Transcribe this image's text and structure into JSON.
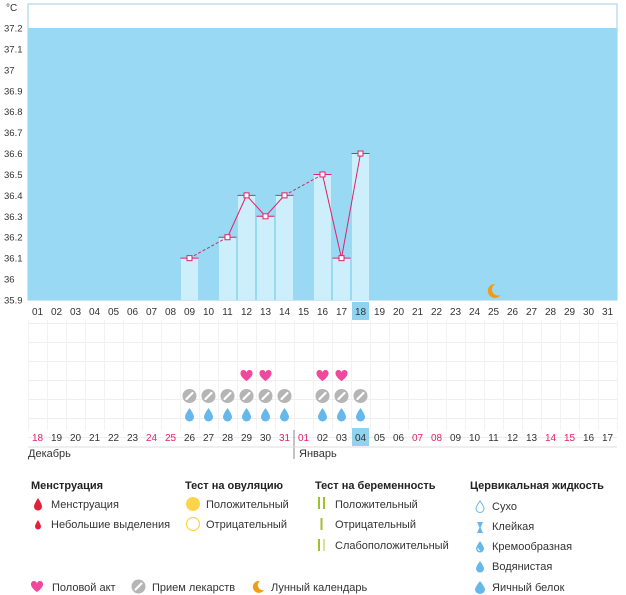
{
  "chart_data": {
    "type": "bar",
    "unit": "°C",
    "ylim": [
      35.9,
      37.2
    ],
    "yticks": [
      "37.2",
      "37.1",
      "37",
      "36.9",
      "36.8",
      "36.7",
      "36.6",
      "36.5",
      "36.4",
      "36.3",
      "36.2",
      "36.1",
      "36",
      "35.9"
    ],
    "cycle_days": [
      "01",
      "02",
      "03",
      "04",
      "05",
      "06",
      "07",
      "08",
      "09",
      "10",
      "11",
      "12",
      "13",
      "14",
      "15",
      "16",
      "17",
      "18",
      "19",
      "20",
      "21",
      "22",
      "23",
      "24",
      "25",
      "26",
      "27",
      "28",
      "29",
      "30",
      "31"
    ],
    "highlight_cycle_day": "18",
    "temperatures": [
      null,
      null,
      null,
      null,
      null,
      null,
      null,
      null,
      36.1,
      null,
      36.2,
      36.4,
      36.3,
      36.4,
      null,
      36.5,
      36.1,
      36.6,
      null,
      null,
      null,
      null,
      null,
      null,
      null,
      null,
      null,
      null,
      null,
      null,
      null
    ],
    "estimated_links": [
      [
        9,
        11
      ],
      [
        14,
        16
      ]
    ],
    "moon_day": "25",
    "calendar_dates": [
      "18",
      "19",
      "20",
      "21",
      "22",
      "23",
      "24",
      "25",
      "26",
      "27",
      "28",
      "29",
      "30",
      "31",
      "01",
      "02",
      "03",
      "04",
      "05",
      "06",
      "07",
      "08",
      "09",
      "10",
      "11",
      "12",
      "13",
      "14",
      "15",
      "16",
      "17"
    ],
    "weekend_dates": [
      true,
      false,
      false,
      false,
      false,
      false,
      true,
      true,
      false,
      false,
      false,
      false,
      false,
      true,
      true,
      false,
      false,
      false,
      false,
      false,
      true,
      true,
      false,
      false,
      false,
      false,
      false,
      true,
      true,
      false,
      false
    ],
    "highlight_calendar_date": "04",
    "months": [
      "Декабрь",
      "Январь"
    ],
    "intercourse_days": [
      "12",
      "13",
      "16",
      "17"
    ],
    "medication_days": [
      "09",
      "10",
      "11",
      "12",
      "13",
      "14",
      "16",
      "17",
      "18"
    ],
    "fluid_watery_days": [
      "09",
      "10",
      "11",
      "12",
      "13",
      "14",
      "16",
      "17",
      "18"
    ]
  },
  "colors": {
    "plot_bg": "#99d9f3",
    "bar": "#cdeefb",
    "line": "#e0216b",
    "highlight": "#8fd3ee",
    "weekend_text": "#e0216b",
    "heart": "#f0489a",
    "pill": "#b5b5b5",
    "drop": "#66b8ea",
    "moon": "#f39c12",
    "ovulation_yellow": "#ffd34a",
    "pregnancy_green": "#9cc22c"
  },
  "legend": {
    "menstruation": {
      "title": "Менструация",
      "items": [
        "Менструация",
        "Небольшие выделения"
      ]
    },
    "ovulation": {
      "title": "Тест на овуляцию",
      "items": [
        "Положительный",
        "Отрицательный"
      ]
    },
    "pregnancy": {
      "title": "Тест на беременность",
      "items": [
        "Положительный",
        "Отрицательный",
        "Слабоположительный"
      ]
    },
    "fluid": {
      "title": "Цервикальная жидкость",
      "items": [
        "Сухо",
        "Клейкая",
        "Кремообразная",
        "Водянистая",
        "Яичный белок"
      ]
    },
    "bottom": [
      "Половой акт",
      "Прием лекарств",
      "Лунный календарь"
    ]
  }
}
